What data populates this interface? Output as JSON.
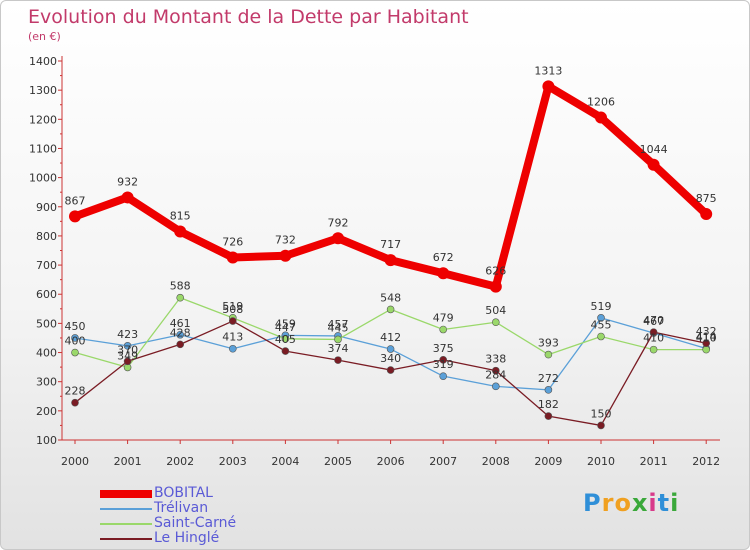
{
  "title": "Evolution du Montant de la Dette par Habitant",
  "unit_label": "(en €)",
  "logo": {
    "letters": [
      "P",
      "r",
      "o",
      "x",
      "i",
      "t",
      "i"
    ],
    "colors": [
      "#2f8fd8",
      "#f0a020",
      "#f0a020",
      "#3aa83a",
      "#d83a8a",
      "#2f8fd8",
      "#3aa83a"
    ]
  },
  "chart_data": {
    "type": "line",
    "x": [
      "2000",
      "2001",
      "2002",
      "2003",
      "2004",
      "2005",
      "2006",
      "2007",
      "2008",
      "2009",
      "2010",
      "2011",
      "2012"
    ],
    "ylim": [
      100,
      1400
    ],
    "yticks": [
      100,
      200,
      300,
      400,
      500,
      600,
      700,
      800,
      900,
      1000,
      1100,
      1200,
      1300,
      1400
    ],
    "grid": false,
    "legend_position": "bottom-left",
    "series": [
      {
        "name": "BOBITAL",
        "color": "#ee0000",
        "width": 8,
        "marker": 6,
        "values": [
          867,
          932,
          815,
          726,
          732,
          792,
          717,
          672,
          626,
          1313,
          1206,
          1044,
          875
        ],
        "labels": [
          "867",
          "932",
          "815",
          "726",
          "732",
          "792",
          "717",
          "672",
          "626",
          "1313",
          "1206",
          "1044",
          "875"
        ]
      },
      {
        "name": "Trélivan",
        "color": "#5ba0d8",
        "width": 1.3,
        "marker": 3.5,
        "values": [
          450,
          423,
          461,
          413,
          459,
          457,
          412,
          319,
          284,
          272,
          519,
          467,
          414
        ],
        "labels": [
          "450",
          "423",
          "461",
          "413",
          "459",
          "457",
          "412",
          "319",
          "284",
          "272",
          "519",
          "467",
          "414"
        ]
      },
      {
        "name": "Saint-Carné",
        "color": "#9ad86a",
        "width": 1.3,
        "marker": 3.5,
        "values": [
          400,
          349,
          588,
          519,
          447,
          445,
          548,
          479,
          504,
          393,
          455,
          410,
          410
        ],
        "labels": [
          "400",
          "349",
          "588",
          "519",
          "447",
          "445",
          "548",
          "479",
          "504",
          "393",
          "455",
          "410",
          "410"
        ]
      },
      {
        "name": "Le Hinglé",
        "color": "#7a1c24",
        "width": 1.3,
        "marker": 3.5,
        "values": [
          228,
          370,
          428,
          508,
          405,
          374,
          340,
          375,
          338,
          182,
          150,
          470,
          432
        ],
        "labels": [
          "228",
          "370",
          "428",
          "508",
          "405",
          "374",
          "340",
          "375",
          "338",
          "182",
          "150",
          "470",
          "432"
        ]
      }
    ]
  }
}
